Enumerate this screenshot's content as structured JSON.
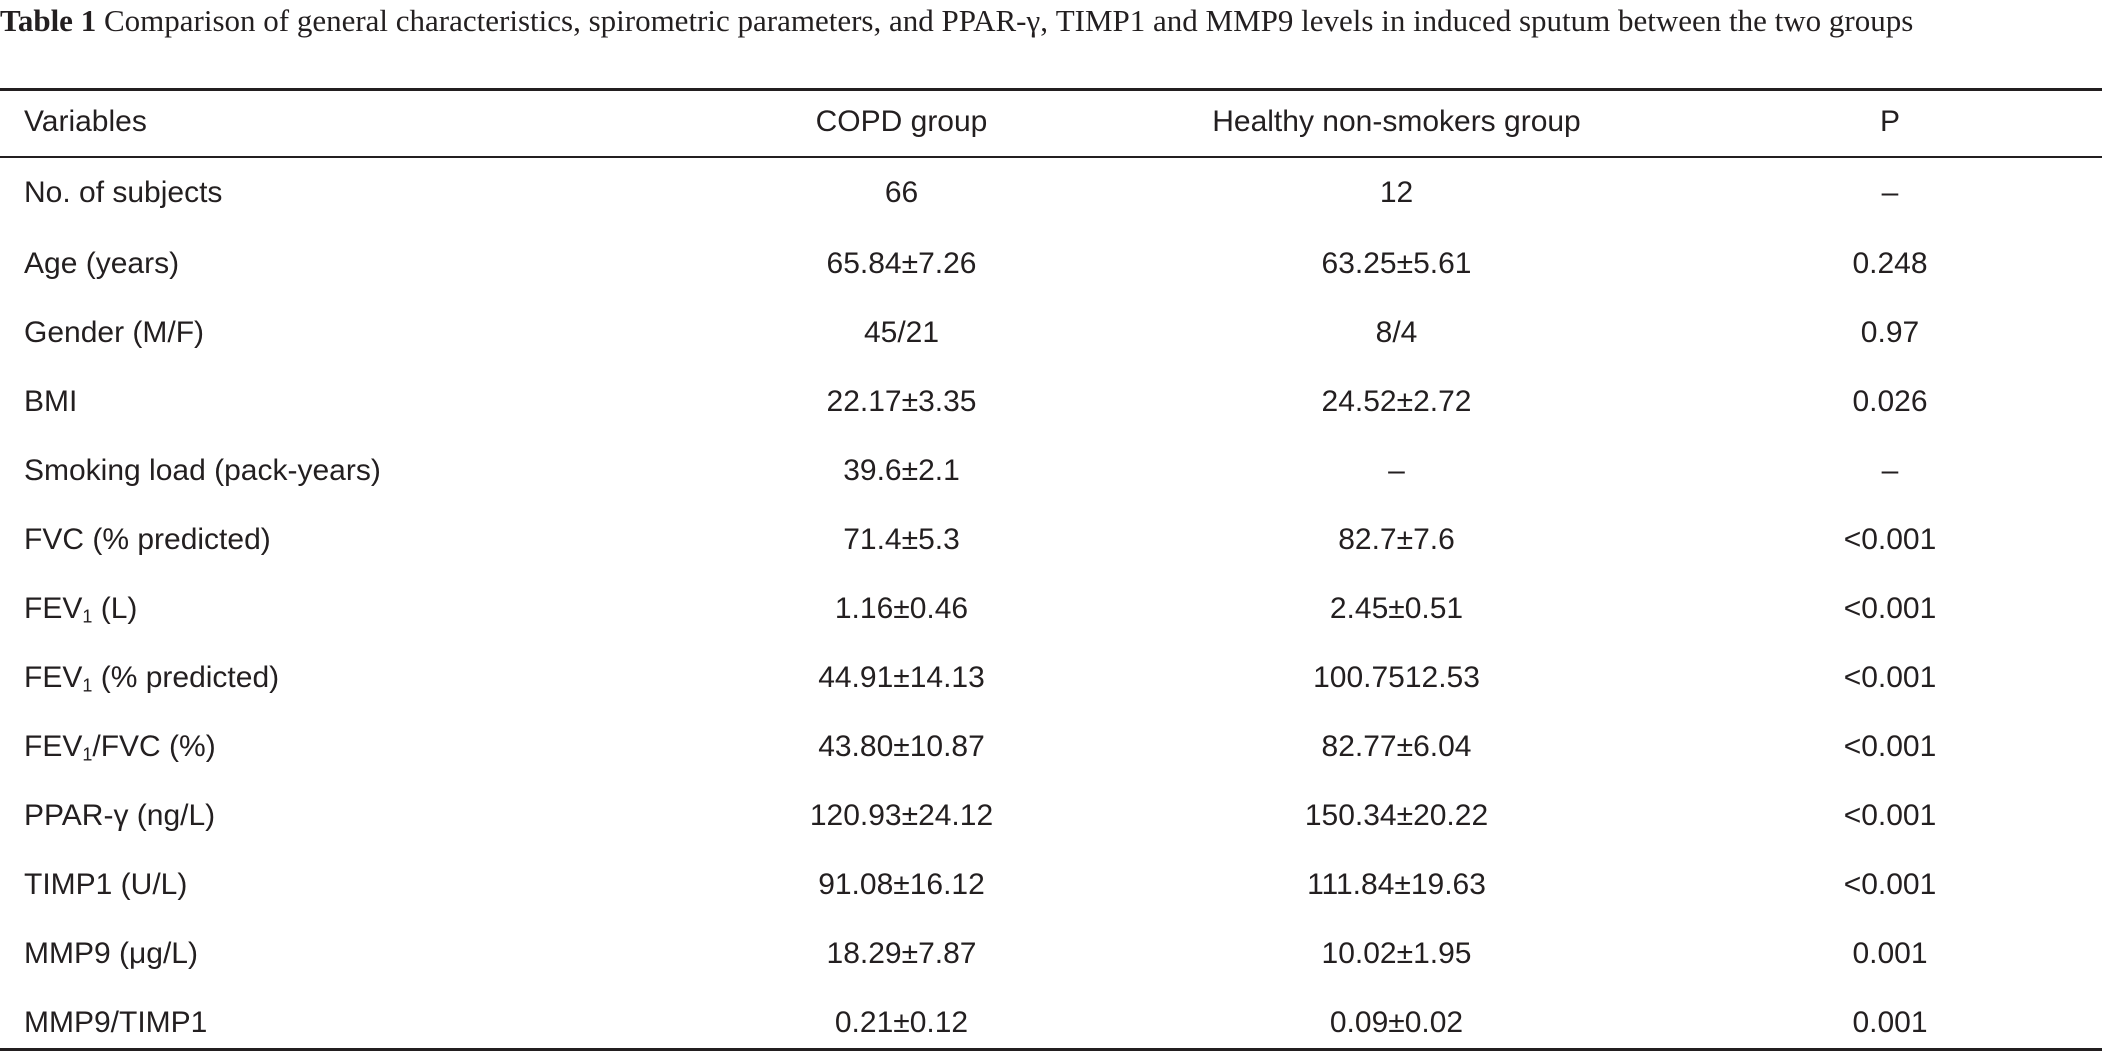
{
  "caption": {
    "label": "Table 1",
    "text": " Comparison of general characteristics, spirometric parameters, and PPAR-γ, TIMP1 and MMP9 levels in induced sputum between the two groups"
  },
  "table": {
    "headers": [
      "Variables",
      "COPD group",
      "Healthy non-smokers group",
      "P"
    ],
    "rows": [
      {
        "variable": "No. of subjects",
        "copd": "66",
        "healthy": "12",
        "p": "–"
      },
      {
        "variable": "Age (years)",
        "copd": "65.84±7.26",
        "healthy": "63.25±5.61",
        "p": "0.248"
      },
      {
        "variable": "Gender (M/F)",
        "copd": "45/21",
        "healthy": "8/4",
        "p": "0.97"
      },
      {
        "variable": "BMI",
        "copd": "22.17±3.35",
        "healthy": "24.52±2.72",
        "p": "0.026"
      },
      {
        "variable": "Smoking load (pack-years)",
        "copd": "39.6±2.1",
        "healthy": "–",
        "p": "–"
      },
      {
        "variable": "FVC (% predicted)",
        "copd": "71.4±5.3",
        "healthy": "82.7±7.6",
        "p": "<0.001"
      },
      {
        "variable_pre": "FEV",
        "variable_sub": "1",
        "variable_post": " (L)",
        "copd": "1.16±0.46",
        "healthy": "2.45±0.51",
        "p": "<0.001"
      },
      {
        "variable_pre": "FEV",
        "variable_sub": "1",
        "variable_post": " (% predicted)",
        "copd": "44.91±14.13",
        "healthy": "100.7512.53",
        "p": "<0.001"
      },
      {
        "variable_pre": "FEV",
        "variable_sub": "1",
        "variable_post": "/FVC (%)",
        "copd": "43.80±10.87",
        "healthy": "82.77±6.04",
        "p": "<0.001"
      },
      {
        "variable": "PPAR-γ (ng/L)",
        "copd": "120.93±24.12",
        "healthy": "150.34±20.22",
        "p": "<0.001"
      },
      {
        "variable": "TIMP1 (U/L)",
        "copd": "91.08±16.12",
        "healthy": "111.84±19.63",
        "p": "<0.001"
      },
      {
        "variable": "MMP9 (μg/L)",
        "copd": "18.29±7.87",
        "healthy": "10.02±1.95",
        "p": "0.001"
      },
      {
        "variable": "MMP9/TIMP1",
        "copd": "0.21±0.12",
        "healthy": "0.09±0.02",
        "p": "0.001"
      }
    ]
  }
}
